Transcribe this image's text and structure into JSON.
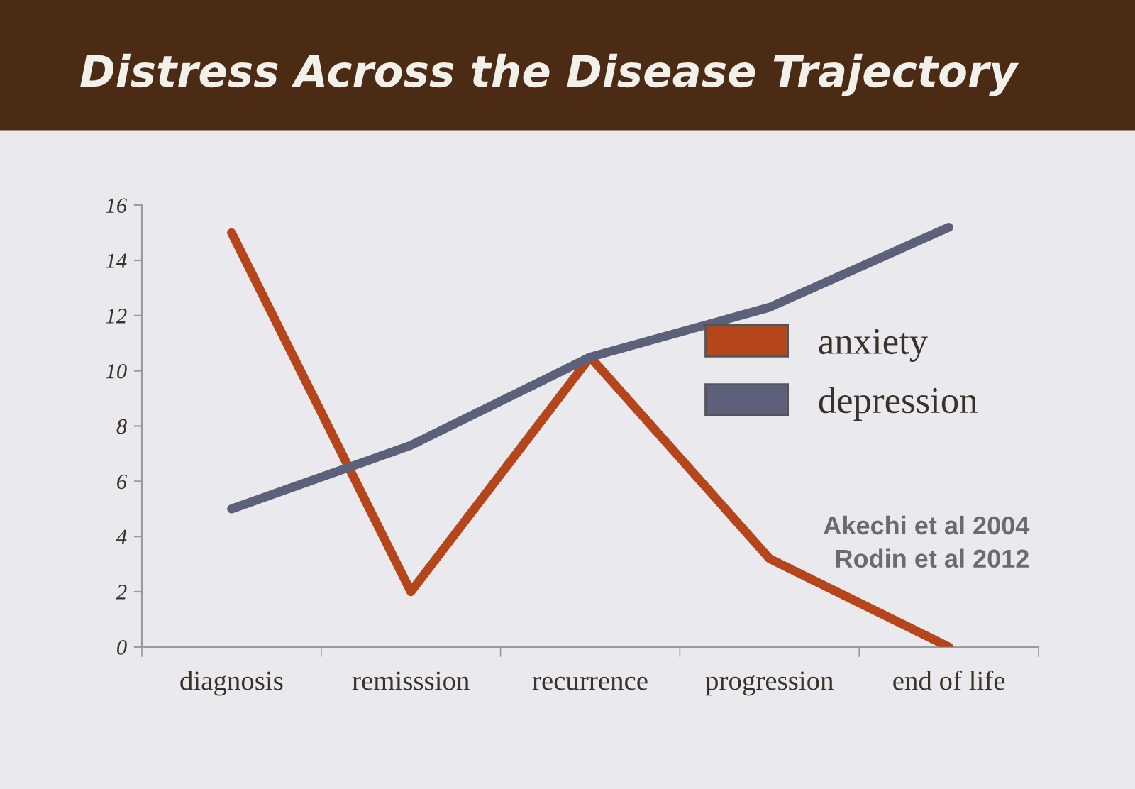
{
  "chart_data": {
    "type": "line",
    "title": "Distress Across the Disease Trajectory",
    "categories": [
      "diagnosis",
      "remisssion",
      "recurrence",
      "progression",
      "end of life"
    ],
    "series": [
      {
        "name": "anxiety",
        "color": "#b5461c",
        "values": [
          15,
          2,
          10.5,
          3.2,
          0
        ]
      },
      {
        "name": "depression",
        "color": "#5c6078",
        "values": [
          5,
          7.3,
          10.5,
          12.3,
          15.2
        ]
      }
    ],
    "ylim": [
      0,
      16
    ],
    "yticks": [
      0,
      2,
      4,
      6,
      8,
      10,
      12,
      14,
      16
    ],
    "legend": "right",
    "annotations": [
      "Akechi et al 2004",
      "Rodin et al 2012"
    ]
  }
}
